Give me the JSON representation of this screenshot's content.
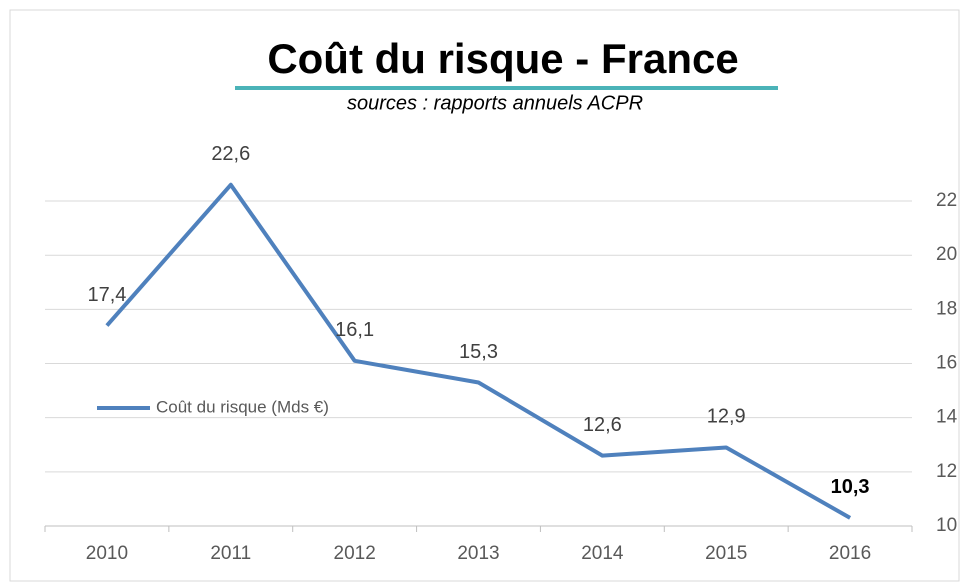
{
  "chart_data": {
    "type": "line",
    "title": "Coût du risque - France",
    "subtitle": "sources : rapports annuels ACPR",
    "categories": [
      "2010",
      "2011",
      "2012",
      "2013",
      "2014",
      "2015",
      "2016"
    ],
    "series": [
      {
        "name": "Coût du risque (Mds €)",
        "color": "#4f81bd",
        "values": [
          17.4,
          22.6,
          16.1,
          15.3,
          12.6,
          12.9,
          10.3
        ],
        "value_labels": [
          "17,4",
          "22,6",
          "16,1",
          "15,3",
          "12,6",
          "12,9",
          "10,3"
        ]
      }
    ],
    "ylim": [
      10,
      24.5
    ],
    "yticks": [
      10,
      12,
      14,
      16,
      18,
      20,
      22
    ],
    "grid": true,
    "legend": "left"
  }
}
